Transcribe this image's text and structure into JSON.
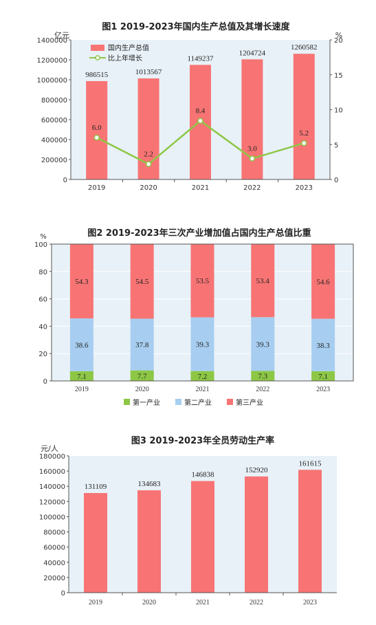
{
  "colors": {
    "bar": "#f87474",
    "bar_secondary": "#a7cef0",
    "bar_primary": "#8dc745",
    "line": "#8dc745",
    "plot_bg": "#e8f1f8",
    "axis": "#555555",
    "grid": "#ffffff"
  },
  "chart_data": [
    {
      "type": "bar+line",
      "title": "图1    2019-2023年国内生产总值及其增长速度",
      "ylabel_left": "亿元",
      "ylabel_right": "%",
      "categories": [
        "2019",
        "2020",
        "2021",
        "2022",
        "2023"
      ],
      "y_ticks_left": [
        "0",
        "200000",
        "400000",
        "600000",
        "800000",
        "1000000",
        "1200000",
        "1400000"
      ],
      "y_ticks_right": [
        "0",
        "5",
        "10",
        "15",
        "20"
      ],
      "ylim_left": [
        0,
        1400000
      ],
      "ylim_right": [
        0,
        20
      ],
      "grid": false,
      "legend_position": "top-left",
      "series": [
        {
          "name": "国内生产总值",
          "type": "bar",
          "axis": "left",
          "values": [
            986515,
            1013567,
            1149237,
            1204724,
            1260582
          ],
          "labels": [
            "986515",
            "1013567",
            "1149237",
            "1204724",
            "1260582"
          ]
        },
        {
          "name": "比上年增长",
          "type": "line",
          "axis": "right",
          "values": [
            6.0,
            2.2,
            8.4,
            3.0,
            5.2
          ],
          "labels": [
            "6.0",
            "2.2",
            "8.4",
            "3.0",
            "5.2"
          ]
        }
      ]
    },
    {
      "type": "stacked-bar",
      "title": "图2 2019-2023年三次产业增加值占国内生产总值比重",
      "ylabel": "%",
      "categories": [
        "2019",
        "2020",
        "2021",
        "2022",
        "2023"
      ],
      "y_ticks": [
        "0",
        "20",
        "40",
        "60",
        "80",
        "100"
      ],
      "ylim": [
        0,
        100
      ],
      "grid": true,
      "legend_position": "bottom",
      "series": [
        {
          "name": "第一产业",
          "values": [
            7.1,
            7.7,
            7.2,
            7.3,
            7.1
          ],
          "labels": [
            "7.1",
            "7.7",
            "7.2",
            "7.3",
            "7.1"
          ]
        },
        {
          "name": "第二产业",
          "values": [
            38.6,
            37.8,
            39.3,
            39.3,
            38.3
          ],
          "labels": [
            "38.6",
            "37.8",
            "39.3",
            "39.3",
            "38.3"
          ]
        },
        {
          "name": "第三产业",
          "values": [
            54.3,
            54.5,
            53.5,
            53.4,
            54.6
          ],
          "labels": [
            "54.3",
            "54.5",
            "53.5",
            "53.4",
            "54.6"
          ]
        }
      ]
    },
    {
      "type": "bar",
      "title": "图3    2019-2023年全员劳动生产率",
      "ylabel": "元/人",
      "categories": [
        "2019",
        "2020",
        "2021",
        "2022",
        "2023"
      ],
      "y_ticks": [
        "0",
        "20000",
        "40000",
        "60000",
        "80000",
        "100000",
        "120000",
        "140000",
        "160000",
        "180000"
      ],
      "ylim": [
        0,
        180000
      ],
      "grid": false,
      "values": [
        131109,
        134683,
        146838,
        152920,
        161615
      ],
      "labels": [
        "131109",
        "134683",
        "146838",
        "152920",
        "161615"
      ]
    }
  ]
}
